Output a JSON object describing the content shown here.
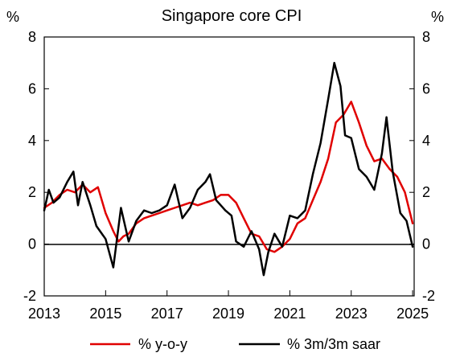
{
  "chart_data": {
    "type": "line",
    "title": "Singapore core CPI",
    "ylabel_left": "%",
    "ylabel_right": "%",
    "xlim": [
      2013,
      2025.05
    ],
    "ylim": [
      -2,
      8
    ],
    "x_ticks": [
      2013,
      2015,
      2017,
      2019,
      2021,
      2023,
      2025
    ],
    "y_ticks": [
      -2,
      0,
      2,
      4,
      6,
      8
    ],
    "x_tick_labels": [
      "2013",
      "2015",
      "2017",
      "2019",
      "2021",
      "2023",
      "2025"
    ],
    "y_tick_labels": [
      "-2",
      "0",
      "2",
      "4",
      "6",
      "8"
    ],
    "zero_line": true,
    "grid": false,
    "legend_position": "bottom",
    "colors": {
      "% y-o-y": "#e00000",
      "% 3m/3m saar": "#000000"
    },
    "series": [
      {
        "name": "% y-o-y",
        "color": "#e00000",
        "points": [
          [
            2013.0,
            1.4
          ],
          [
            2013.25,
            1.6
          ],
          [
            2013.5,
            1.9
          ],
          [
            2013.75,
            2.1
          ],
          [
            2014.0,
            2.0
          ],
          [
            2014.25,
            2.3
          ],
          [
            2014.5,
            2.0
          ],
          [
            2014.75,
            2.2
          ],
          [
            2015.0,
            1.2
          ],
          [
            2015.25,
            0.5
          ],
          [
            2015.42,
            0.1
          ],
          [
            2015.58,
            0.3
          ],
          [
            2015.75,
            0.4
          ],
          [
            2016.0,
            0.8
          ],
          [
            2016.25,
            1.0
          ],
          [
            2016.5,
            1.1
          ],
          [
            2016.75,
            1.2
          ],
          [
            2017.0,
            1.3
          ],
          [
            2017.25,
            1.4
          ],
          [
            2017.5,
            1.5
          ],
          [
            2017.75,
            1.6
          ],
          [
            2018.0,
            1.5
          ],
          [
            2018.25,
            1.6
          ],
          [
            2018.5,
            1.7
          ],
          [
            2018.75,
            1.9
          ],
          [
            2019.0,
            1.9
          ],
          [
            2019.25,
            1.6
          ],
          [
            2019.5,
            1.0
          ],
          [
            2019.75,
            0.4
          ],
          [
            2020.0,
            0.3
          ],
          [
            2020.25,
            -0.2
          ],
          [
            2020.5,
            -0.3
          ],
          [
            2020.75,
            -0.1
          ],
          [
            2021.0,
            0.2
          ],
          [
            2021.25,
            0.8
          ],
          [
            2021.5,
            1.0
          ],
          [
            2021.75,
            1.7
          ],
          [
            2022.0,
            2.4
          ],
          [
            2022.25,
            3.3
          ],
          [
            2022.5,
            4.7
          ],
          [
            2022.75,
            5.0
          ],
          [
            2023.0,
            5.5
          ],
          [
            2023.25,
            4.7
          ],
          [
            2023.5,
            3.8
          ],
          [
            2023.75,
            3.2
          ],
          [
            2024.0,
            3.3
          ],
          [
            2024.25,
            2.9
          ],
          [
            2024.5,
            2.6
          ],
          [
            2024.75,
            2.0
          ],
          [
            2025.0,
            0.8
          ]
        ]
      },
      {
        "name": "% 3m/3m saar",
        "color": "#000000",
        "points": [
          [
            2013.0,
            1.3
          ],
          [
            2013.15,
            2.1
          ],
          [
            2013.3,
            1.6
          ],
          [
            2013.5,
            1.8
          ],
          [
            2013.75,
            2.4
          ],
          [
            2013.95,
            2.8
          ],
          [
            2014.1,
            1.5
          ],
          [
            2014.25,
            2.4
          ],
          [
            2014.5,
            1.5
          ],
          [
            2014.7,
            0.7
          ],
          [
            2015.0,
            0.2
          ],
          [
            2015.25,
            -0.9
          ],
          [
            2015.5,
            1.4
          ],
          [
            2015.75,
            0.1
          ],
          [
            2016.0,
            0.9
          ],
          [
            2016.25,
            1.3
          ],
          [
            2016.5,
            1.2
          ],
          [
            2016.75,
            1.3
          ],
          [
            2017.0,
            1.5
          ],
          [
            2017.25,
            2.3
          ],
          [
            2017.5,
            1.0
          ],
          [
            2017.75,
            1.4
          ],
          [
            2018.0,
            2.1
          ],
          [
            2018.25,
            2.4
          ],
          [
            2018.4,
            2.7
          ],
          [
            2018.6,
            1.7
          ],
          [
            2018.9,
            1.3
          ],
          [
            2019.1,
            1.1
          ],
          [
            2019.25,
            0.1
          ],
          [
            2019.5,
            -0.1
          ],
          [
            2019.75,
            0.5
          ],
          [
            2020.0,
            -0.2
          ],
          [
            2020.15,
            -1.2
          ],
          [
            2020.3,
            -0.3
          ],
          [
            2020.5,
            0.4
          ],
          [
            2020.75,
            -0.1
          ],
          [
            2021.0,
            1.1
          ],
          [
            2021.25,
            1.0
          ],
          [
            2021.5,
            1.3
          ],
          [
            2021.75,
            2.7
          ],
          [
            2022.0,
            3.9
          ],
          [
            2022.25,
            5.6
          ],
          [
            2022.45,
            7.0
          ],
          [
            2022.65,
            6.1
          ],
          [
            2022.8,
            4.2
          ],
          [
            2023.0,
            4.1
          ],
          [
            2023.25,
            2.9
          ],
          [
            2023.5,
            2.6
          ],
          [
            2023.75,
            2.1
          ],
          [
            2024.0,
            3.5
          ],
          [
            2024.15,
            4.9
          ],
          [
            2024.35,
            2.8
          ],
          [
            2024.6,
            1.2
          ],
          [
            2024.8,
            0.9
          ],
          [
            2025.0,
            -0.1
          ]
        ]
      }
    ]
  }
}
